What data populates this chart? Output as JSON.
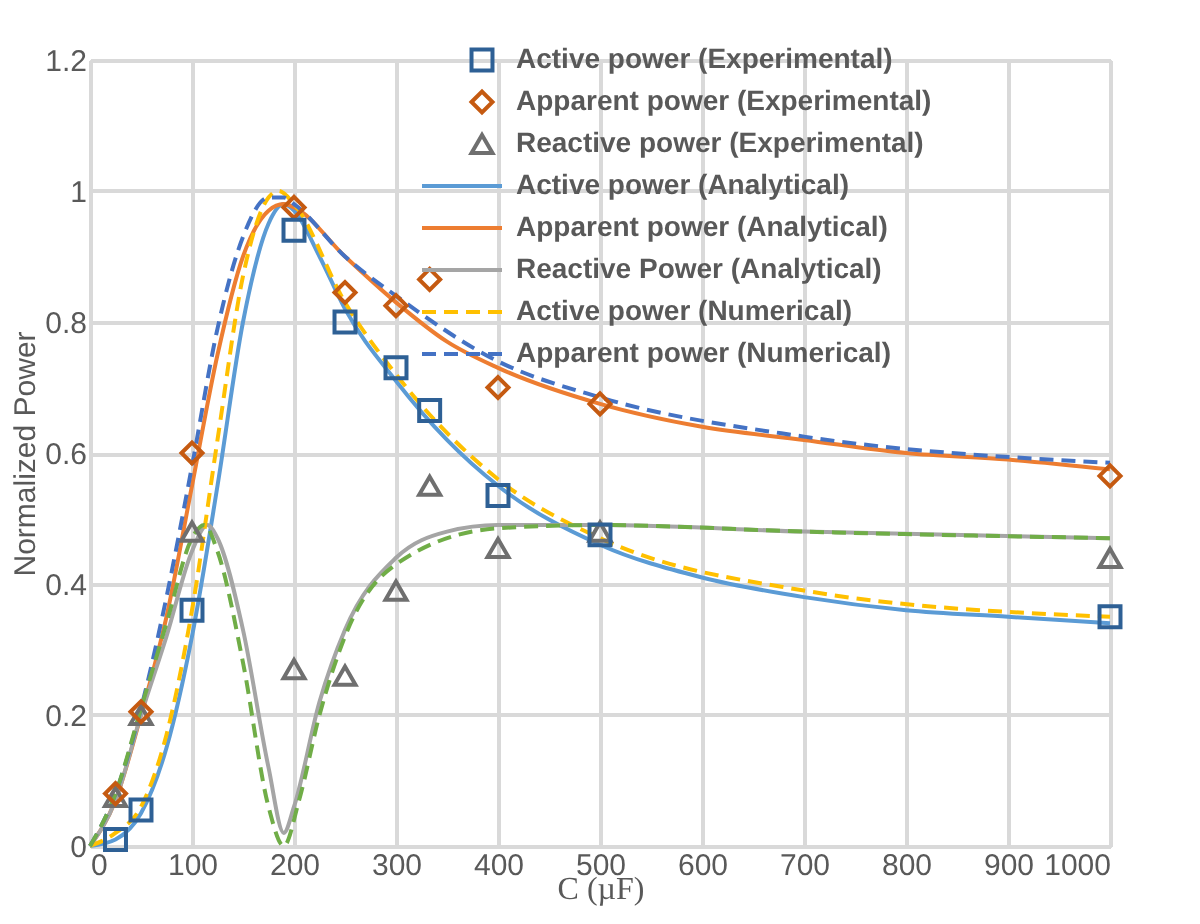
{
  "chart_data": {
    "type": "line",
    "xlabel": "C (µF)",
    "ylabel": "Normalized Power",
    "xlim": [
      0,
      1000
    ],
    "xticks": [
      0,
      100,
      200,
      300,
      400,
      500,
      600,
      700,
      800,
      900,
      1000
    ],
    "ylim": [
      0,
      1.2
    ],
    "yticks": [
      0,
      0.2,
      0.4,
      0.6,
      0.8,
      1,
      1.2
    ],
    "grid": true,
    "legend": "top right",
    "series": [
      {
        "name": "Active power (Experimental)",
        "type": "scatter",
        "marker": "square",
        "color": "#2e6095",
        "x": [
          25,
          50,
          100,
          200,
          250,
          300,
          333,
          400,
          500,
          1000
        ],
        "values": [
          0.01,
          0.055,
          0.36,
          0.94,
          0.8,
          0.73,
          0.665,
          0.535,
          0.475,
          0.35
        ]
      },
      {
        "name": "Apparent power (Experimental)",
        "type": "scatter",
        "marker": "diamond",
        "color": "#c55a11",
        "x": [
          25,
          50,
          100,
          200,
          250,
          300,
          333,
          400,
          500,
          1000
        ],
        "values": [
          0.08,
          0.205,
          0.6,
          0.975,
          0.845,
          0.825,
          0.865,
          0.7,
          0.675,
          0.565
        ]
      },
      {
        "name": "Reactive power (Experimental)",
        "type": "scatter",
        "marker": "triangle",
        "color": "#6f6f6f",
        "x": [
          25,
          50,
          100,
          200,
          250,
          300,
          333,
          400,
          500,
          1000
        ],
        "values": [
          0.075,
          0.2,
          0.48,
          0.27,
          0.26,
          0.39,
          0.55,
          0.455,
          0.48,
          0.44
        ]
      },
      {
        "name": "Active power (Analytical)",
        "type": "line",
        "line_style": "solid",
        "color": "#5b9bd5",
        "x": [
          0,
          25,
          50,
          75,
          100,
          125,
          150,
          175,
          190,
          200,
          225,
          250,
          300,
          350,
          400,
          500,
          600,
          700,
          800,
          900,
          1000
        ],
        "values": [
          0,
          0.01,
          0.05,
          0.15,
          0.32,
          0.55,
          0.8,
          0.95,
          0.98,
          0.97,
          0.9,
          0.82,
          0.71,
          0.62,
          0.55,
          0.46,
          0.41,
          0.38,
          0.36,
          0.35,
          0.34
        ]
      },
      {
        "name": "Apparent power (Analytical)",
        "type": "line",
        "line_style": "solid",
        "color": "#ed7d31",
        "x": [
          0,
          25,
          50,
          75,
          100,
          125,
          150,
          175,
          190,
          200,
          250,
          300,
          350,
          400,
          500,
          600,
          700,
          800,
          900,
          1000
        ],
        "values": [
          0,
          0.07,
          0.2,
          0.35,
          0.55,
          0.75,
          0.9,
          0.97,
          0.98,
          0.975,
          0.9,
          0.83,
          0.77,
          0.73,
          0.675,
          0.64,
          0.62,
          0.6,
          0.59,
          0.575
        ]
      },
      {
        "name": "Reactive Power (Analytical)",
        "type": "line",
        "line_style": "solid",
        "color": "#a5a5a5",
        "x": [
          0,
          25,
          50,
          75,
          100,
          115,
          125,
          150,
          175,
          190,
          200,
          225,
          250,
          300,
          350,
          400,
          500,
          700,
          1000
        ],
        "values": [
          0,
          0.07,
          0.2,
          0.32,
          0.45,
          0.49,
          0.47,
          0.33,
          0.12,
          0.02,
          0.06,
          0.22,
          0.33,
          0.44,
          0.48,
          0.49,
          0.49,
          0.48,
          0.47
        ]
      },
      {
        "name": "Active power (Numerical)",
        "type": "line",
        "line_style": "dashed",
        "color": "#ffc000",
        "x": [
          0,
          25,
          50,
          75,
          100,
          125,
          150,
          175,
          185,
          200,
          250,
          300,
          400,
          500,
          700,
          1000
        ],
        "values": [
          0,
          0.02,
          0.06,
          0.17,
          0.36,
          0.62,
          0.87,
          0.99,
          1.0,
          0.98,
          0.83,
          0.72,
          0.56,
          0.47,
          0.39,
          0.35
        ]
      },
      {
        "name": "Apparent power (Numerical)",
        "type": "line",
        "line_style": "dashed",
        "color": "#4472c4",
        "x": [
          0,
          25,
          50,
          75,
          100,
          125,
          150,
          175,
          190,
          200,
          250,
          300,
          400,
          500,
          700,
          1000
        ],
        "values": [
          0,
          0.08,
          0.21,
          0.38,
          0.58,
          0.79,
          0.93,
          0.99,
          0.99,
          0.98,
          0.9,
          0.84,
          0.74,
          0.685,
          0.625,
          0.585
        ]
      },
      {
        "type": "line",
        "line_style": "dashed",
        "color": "#70ad47",
        "x": [
          0,
          25,
          50,
          75,
          100,
          112,
          125,
          150,
          175,
          190,
          205,
          225,
          250,
          300,
          400,
          500,
          700,
          1000
        ],
        "values": [
          0,
          0.08,
          0.21,
          0.34,
          0.47,
          0.49,
          0.45,
          0.28,
          0.06,
          0.0,
          0.07,
          0.2,
          0.32,
          0.43,
          0.485,
          0.49,
          0.48,
          0.47
        ]
      }
    ]
  }
}
